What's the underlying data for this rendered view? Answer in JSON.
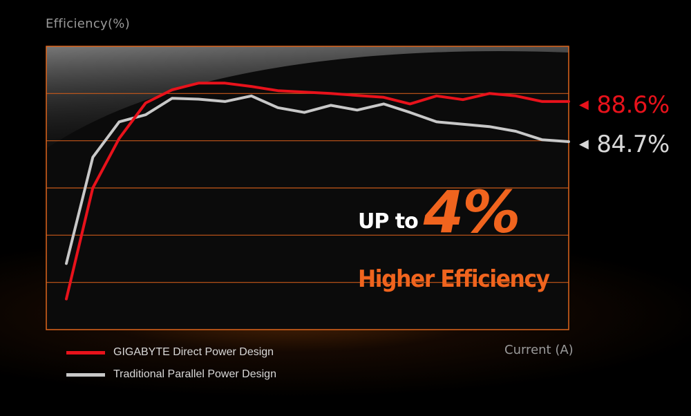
{
  "chart_data": {
    "type": "line",
    "ylabel": "Efficiency(%)",
    "xlabel": "Current (A)",
    "grid": true,
    "ylim": [
      0,
      6
    ],
    "series": [
      {
        "name": "GIGABYTE Direct Power Design",
        "color": "#e8121b",
        "end_label": "88.6%",
        "x": [
          0,
          1,
          2,
          3,
          4,
          5,
          6,
          7,
          8,
          9,
          10,
          11,
          12,
          13,
          14,
          15,
          16,
          17,
          18,
          19
        ],
        "values": [
          0.65,
          3.0,
          4.05,
          4.8,
          5.08,
          5.22,
          5.22,
          5.15,
          5.06,
          5.03,
          5.0,
          4.96,
          4.92,
          4.78,
          4.95,
          4.87,
          5.0,
          4.95,
          4.83,
          4.83
        ]
      },
      {
        "name": "Traditional Parallel Power Design",
        "color": "#c8c8c8",
        "end_label": "84.7%",
        "x": [
          0,
          1,
          2,
          3,
          4,
          5,
          6,
          7,
          8,
          9,
          10,
          11,
          12,
          13,
          14,
          15,
          16,
          17,
          18,
          19
        ],
        "values": [
          1.4,
          3.65,
          4.4,
          4.55,
          4.9,
          4.88,
          4.83,
          4.95,
          4.7,
          4.6,
          4.75,
          4.65,
          4.78,
          4.6,
          4.4,
          4.35,
          4.3,
          4.2,
          4.02,
          3.98
        ]
      }
    ]
  },
  "promo": {
    "prefix": "UP to",
    "value": "4%",
    "subtitle": "Higher Efficiency",
    "accent_color": "#f0641e"
  }
}
